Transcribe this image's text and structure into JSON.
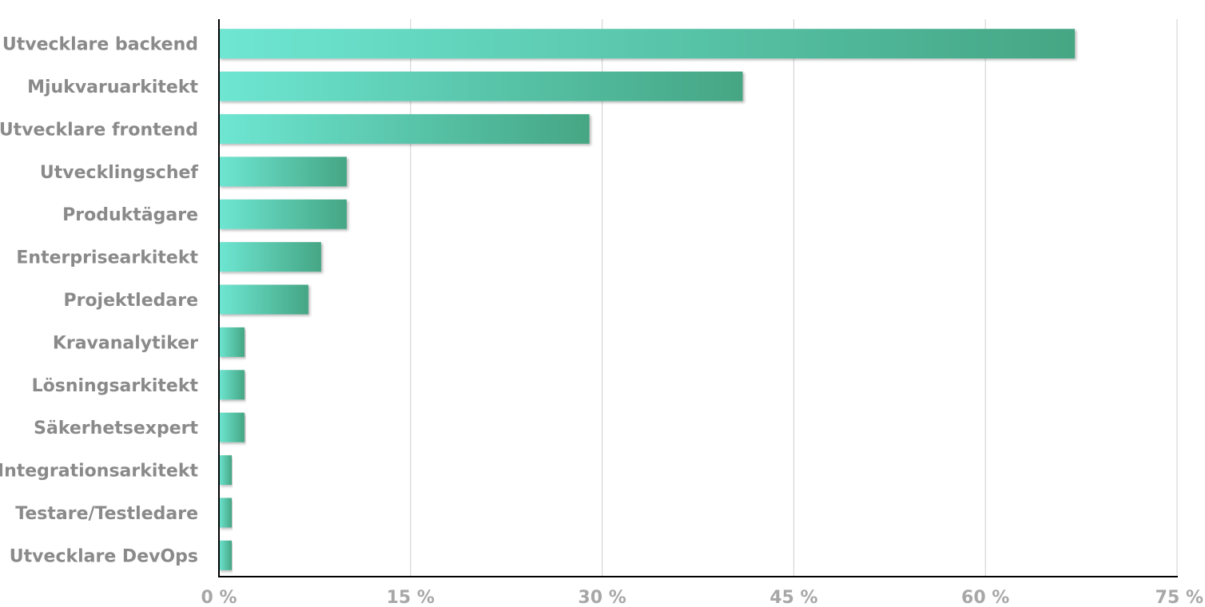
{
  "chart_data": {
    "type": "bar",
    "orientation": "horizontal",
    "categories": [
      "Utvecklare backend",
      "Mjukvaruarkitekt",
      "Utvecklare frontend",
      "Utvecklingschef",
      "Produktägare",
      "Enterprisearkitekt",
      "Projektledare",
      "Kravanalytiker",
      "Lösningsarkitekt",
      "Säkerhetsexpert",
      "Integrationsarkitekt",
      "Testare/Testledare",
      "Utvecklare DevOps"
    ],
    "values": [
      67,
      41,
      29,
      10,
      10,
      8,
      7,
      2,
      2,
      2,
      1,
      1,
      1
    ],
    "xlim": [
      0,
      75
    ],
    "x_ticks": [
      0,
      15,
      30,
      45,
      60,
      75
    ],
    "x_tick_labels": [
      "0 %",
      "15 %",
      "30 %",
      "45 %",
      "60 %",
      "75 %"
    ],
    "title": "",
    "xlabel": "",
    "ylabel": "",
    "grid": "vertical",
    "legend": "none",
    "colors": {
      "bar_start": "#6ee6d2",
      "bar_end": "#45a684",
      "grid": "#cfcfcf",
      "axis": "#000000",
      "category_label": "#8a8a8a",
      "tick_label": "#a7a7a7"
    }
  }
}
